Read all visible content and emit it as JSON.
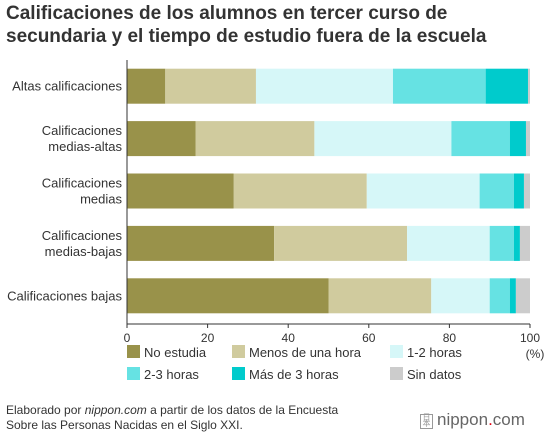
{
  "title": [
    "Calificaciones de los alumnos en tercer curso de",
    "secundaria y el tiempo de estudio fuera de la escuela"
  ],
  "chart_data": {
    "type": "bar",
    "orientation": "horizontal",
    "stacked": true,
    "categories": [
      [
        "Altas calificaciones"
      ],
      [
        "Calificaciones",
        "medias-altas"
      ],
      [
        "Calificaciones",
        "medias"
      ],
      [
        "Calificaciones",
        "medias-bajas"
      ],
      [
        "Calificaciones bajas"
      ]
    ],
    "series": [
      {
        "name": "No estudia",
        "color": "#99924a",
        "values": [
          9.5,
          17,
          26.5,
          36.5,
          50
        ]
      },
      {
        "name": "Menos de una hora",
        "color": "#d0cb9e",
        "values": [
          22.5,
          29.5,
          33,
          33,
          25.5
        ]
      },
      {
        "name": "1-2 horas",
        "color": "#d6f7f8",
        "values": [
          34,
          34,
          28,
          20.5,
          14.5
        ]
      },
      {
        "name": "2-3 horas",
        "color": "#66e2e3",
        "values": [
          23,
          14.5,
          8.5,
          6,
          5
        ]
      },
      {
        "name": "Más de 3 horas",
        "color": "#00cbcc",
        "values": [
          10.5,
          4,
          2.5,
          1.5,
          1.5
        ]
      },
      {
        "name": "Sin datos",
        "color": "#cccccc",
        "values": [
          0.5,
          1,
          1.5,
          2.5,
          3.5
        ]
      }
    ],
    "xlim": [
      0,
      100
    ],
    "xticks": [
      0,
      20,
      40,
      60,
      80,
      100
    ],
    "xunit": "(%)",
    "legend_position": "bottom",
    "grid": false
  },
  "source": {
    "pre": "Elaborado por ",
    "site": "nippon.com",
    "mid": " a partir de los datos de la Encuesta",
    "post": "Sobre las Personas Nacidas en el Siglo XXI."
  },
  "logo": {
    "name": "nippon",
    "dot": ".",
    "tld": "com"
  }
}
